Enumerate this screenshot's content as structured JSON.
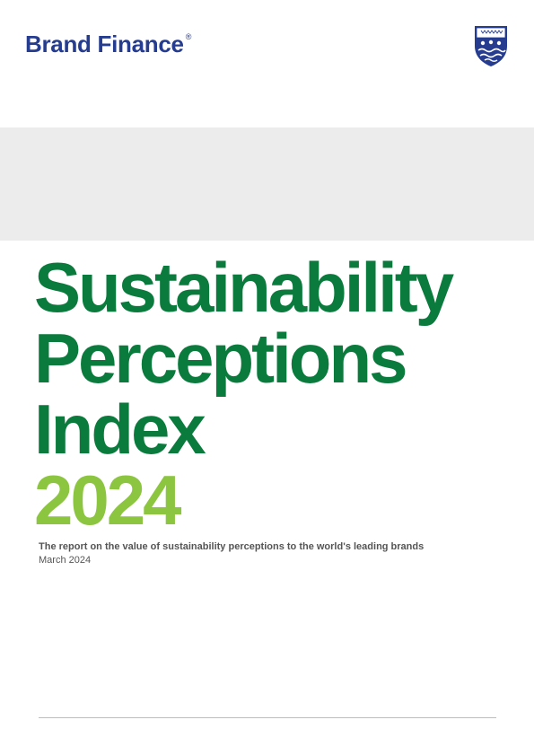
{
  "header": {
    "logo_text": "Brand Finance",
    "logo_mark": "®",
    "crest_icon": "shield-crest-icon"
  },
  "cover": {
    "title_lines": [
      "Sustainability",
      "Perceptions",
      "Index"
    ],
    "year": "2024",
    "subtitle": "The report on the value of sustainability perceptions to the world's leading brands",
    "date": "March 2024"
  },
  "colors": {
    "brand_navy": "#253c8f",
    "title_green": "#0a7b3c",
    "year_green": "#8cc53f",
    "band_grey": "#ececec",
    "text_grey": "#555555"
  }
}
